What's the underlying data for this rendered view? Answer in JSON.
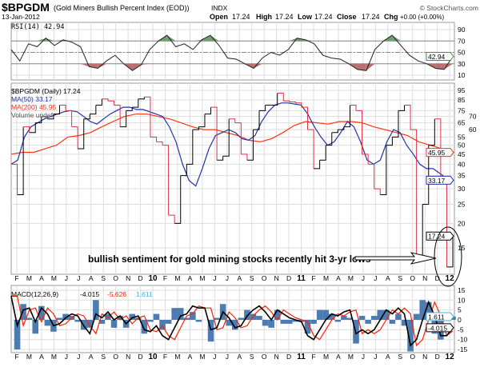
{
  "header": {
    "symbol": "$BPGDM",
    "name": "(Gold Miners Bullish Percent Index (EOD))",
    "exchange": "INDX",
    "date": "13-Jan-2012",
    "watermark": "© StockCharts.com",
    "open_label": "Open",
    "open": "17.24",
    "high_label": "High",
    "high": "17.24",
    "low_label": "Low",
    "low": "17.24",
    "close_label": "Close",
    "close": "17.24",
    "chg_label": "Chg",
    "chg": "+0.00 (+0.00%)"
  },
  "colors": {
    "price": "#000000",
    "price_down": "#e0304a",
    "ma50": "#2233aa",
    "ma200": "#ff3311",
    "macd": "#000000",
    "signal": "#ff2200",
    "hist": "#3a6ea8",
    "rsi_over": "#6f9e6f",
    "rsi_under": "#b87070",
    "grid": "#dddddd"
  },
  "chart_data": [
    {
      "type": "line",
      "title": "RSI(14) 42.94",
      "legend": "RSI(14) 42.94",
      "ylim": [
        0,
        100
      ],
      "yticks": [
        90,
        70,
        50,
        30,
        10
      ],
      "last_label": "42.94",
      "series": [
        {
          "name": "RSI(14)",
          "values": [
            55,
            35,
            65,
            60,
            75,
            62,
            72,
            68,
            60,
            25,
            22,
            35,
            45,
            30,
            18,
            28,
            55,
            70,
            80,
            60,
            65,
            55,
            72,
            80,
            62,
            40,
            38,
            30,
            22,
            40,
            50,
            45,
            55,
            75,
            72,
            65,
            45,
            40,
            38,
            30,
            20,
            18,
            55,
            70,
            80,
            62,
            45,
            35,
            30,
            22,
            20,
            42.94
          ]
        }
      ]
    },
    {
      "type": "line",
      "title": "$BPGDM (Daily) 17.24",
      "scale": "log",
      "ylim": [
        9,
        100
      ],
      "yticks": [
        95,
        85,
        75,
        70,
        65,
        60,
        55,
        50,
        45,
        40,
        35,
        30,
        25,
        20,
        15
      ],
      "legend": [
        {
          "name": "$BPGDM (Daily) 17.24"
        },
        {
          "name": "MA(50) 33.17"
        },
        {
          "name": "MA(200) 45.95"
        },
        {
          "name": "Volume undef"
        }
      ],
      "series": [
        {
          "name": "$BPGDM",
          "last_label": "17.24",
          "values": [
            40,
            28,
            62,
            58,
            65,
            70,
            68,
            72,
            80,
            75,
            62,
            48,
            68,
            72,
            80,
            86,
            84,
            80,
            62,
            75,
            78,
            86,
            88,
            55,
            52,
            50,
            22,
            20,
            35,
            40,
            60,
            62,
            72,
            78,
            42,
            44,
            68,
            65,
            45,
            42,
            60,
            75,
            80,
            80,
            92,
            84,
            83,
            82,
            78,
            60,
            38,
            42,
            50,
            58,
            60,
            62,
            80,
            75,
            45,
            40,
            30,
            28,
            50,
            55,
            75,
            80,
            60,
            13,
            25,
            50,
            68,
            32,
            12,
            17.24
          ]
        },
        {
          "name": "MA(50)",
          "last_label": "33.17",
          "values": [
            40,
            42,
            55,
            62,
            65,
            68,
            70,
            72,
            74,
            75,
            74,
            70,
            66,
            64,
            68,
            72,
            75,
            78,
            78,
            76,
            76,
            74,
            72,
            70,
            62,
            52,
            40,
            33,
            31,
            38,
            48,
            56,
            58,
            60,
            58,
            54,
            53,
            56,
            66,
            74,
            80,
            82,
            82,
            81,
            80,
            72,
            62,
            55,
            50,
            52,
            58,
            66,
            62,
            52,
            42,
            40,
            42,
            52,
            60,
            58,
            50,
            45,
            40,
            38,
            38,
            36,
            34,
            33.17
          ]
        },
        {
          "name": "MA(200)",
          "last_label": "45.95",
          "values": [
            45,
            46,
            46,
            48,
            50,
            55,
            56,
            58,
            62,
            66,
            70,
            72,
            72,
            70,
            68,
            65,
            62,
            60,
            60,
            58,
            56,
            53,
            52,
            54,
            58,
            63,
            66,
            65,
            64,
            66,
            66,
            65,
            62,
            60,
            58,
            56,
            52,
            50,
            48,
            45.95
          ]
        }
      ],
      "annotation": "bullish sentiment for gold mining stocks recently hit 3-yr lows"
    },
    {
      "type": "line",
      "title": "MACD(12,26,9)",
      "ylim": [
        -16,
        16
      ],
      "yticks": [
        15,
        10,
        5,
        0,
        -5,
        -10,
        -15
      ],
      "legend": {
        "label": "MACD(12,26,9)",
        "macd": "-4.015",
        "signal": "-5.626",
        "hist": "1.611"
      },
      "series": [
        {
          "name": "MACD",
          "values": [
            12,
            -3,
            5,
            6,
            -1,
            6,
            3,
            -3,
            -2,
            1,
            3,
            2,
            -3,
            -7,
            3,
            1,
            4,
            0,
            2,
            -2,
            1,
            2,
            -5,
            -6,
            -3,
            -8,
            -10,
            -4,
            2,
            3,
            7,
            6,
            6,
            -5,
            -4,
            4,
            1,
            -4,
            -3,
            2,
            5,
            7,
            4,
            0,
            5,
            3,
            1,
            0,
            -1,
            -8,
            -10,
            -5,
            0,
            3,
            2,
            4,
            5,
            -7,
            -5,
            -7,
            -5,
            0,
            5,
            3,
            6,
            3,
            -13,
            -10,
            0,
            9,
            2,
            -8,
            -8,
            -4.015
          ]
        },
        {
          "name": "Signal",
          "values": [
            12,
            12,
            -3,
            5,
            6,
            -1,
            6,
            3,
            -3,
            -2,
            1,
            3,
            2,
            -3,
            -7,
            3,
            1,
            4,
            0,
            2,
            -2,
            1,
            2,
            -5,
            -6,
            -3,
            -8,
            -10,
            -4,
            2,
            3,
            7,
            6,
            6,
            -5,
            -4,
            4,
            1,
            -4,
            -3,
            2,
            5,
            7,
            4,
            0,
            5,
            3,
            1,
            0,
            -1,
            -8,
            -10,
            -5,
            0,
            3,
            2,
            4,
            5,
            -7,
            -5,
            -7,
            -5,
            0,
            5,
            3,
            6,
            3,
            -13,
            -10,
            0,
            9,
            2,
            -8,
            -5.626
          ]
        }
      ]
    }
  ],
  "xaxis": {
    "months": [
      "F",
      "M",
      "A",
      "M",
      "J",
      "J",
      "A",
      "S",
      "O",
      "N",
      "D",
      "10",
      "F",
      "M",
      "A",
      "M",
      "J",
      "J",
      "A",
      "S",
      "O",
      "N",
      "D",
      "11",
      "F",
      "M",
      "A",
      "M",
      "J",
      "J",
      "A",
      "S",
      "O",
      "N",
      "D",
      "12"
    ]
  }
}
